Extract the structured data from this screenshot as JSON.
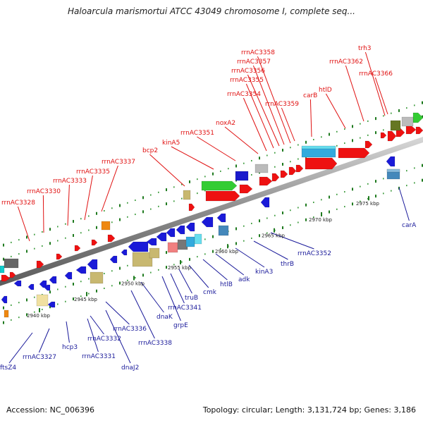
{
  "title": "Haloarcula marismortui ATCC 43049 chromosome I, complete seq...",
  "footer": {
    "accession": "Accession: NC_006396",
    "stats": "Topology: circular; Length: 3,131,724 bp; Genes: 3,186"
  },
  "colors": {
    "forward_label": "#e01010",
    "reverse_label": "#1a1a9a",
    "backbone": "#8c8c8c"
  },
  "ticks": [
    {
      "label": "2940 kbp"
    },
    {
      "label": "2945 kbp"
    },
    {
      "label": "2950 kbp"
    },
    {
      "label": "2955 kbp"
    },
    {
      "label": "2960 kbp"
    },
    {
      "label": "2965 kbp"
    },
    {
      "label": "2970 kbp"
    },
    {
      "label": "2975 kbp"
    }
  ],
  "forward_labels": [
    "rrnAC3328",
    "rrnAC3330",
    "rrnAC3333",
    "rrnAC3335",
    "rrnAC3337",
    "bcp2",
    "kinA5",
    "rrnAC3351",
    "noxA2",
    "rrnAC3354",
    "rrnAC3355",
    "rrnAC3356",
    "rrnAC3357",
    "rrnAC3358",
    "rrnAC3359",
    "carB",
    "htlD",
    "rrnAC3362",
    "trh3",
    "rrnAC3366"
  ],
  "reverse_labels": [
    "ftsZ4",
    "rrnAC3327",
    "hcp3",
    "rrnAC3331",
    "rrnAC3332",
    "dnaJ2",
    "rrnAC3336",
    "rrnAC3338",
    "dnaK",
    "grpE",
    "rrnAC3341",
    "truB",
    "cmk",
    "htlB",
    "adk",
    "kinA3",
    "thrB",
    "rrnAC3352",
    "carA"
  ]
}
